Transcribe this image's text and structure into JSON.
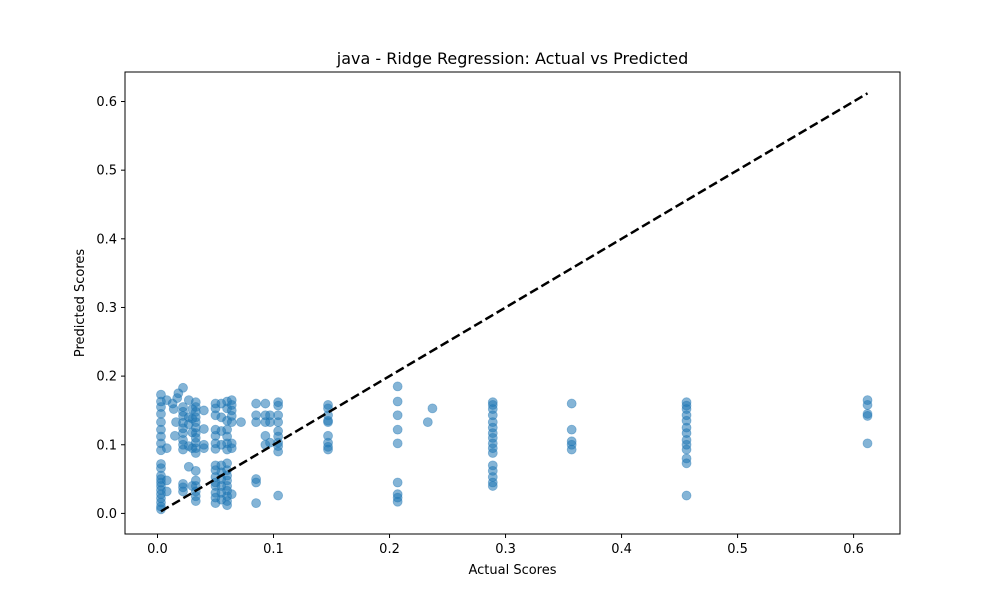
{
  "chart_data": {
    "type": "scatter",
    "title": "java - Ridge Regression: Actual vs Predicted",
    "xlabel": "Actual Scores",
    "ylabel": "Predicted Scores",
    "xlim": [
      -0.028,
      0.64
    ],
    "ylim": [
      -0.03,
      0.643
    ],
    "xticks": [
      0.0,
      0.1,
      0.2,
      0.3,
      0.4,
      0.5,
      0.6
    ],
    "xtick_labels": [
      "0.0",
      "0.1",
      "0.2",
      "0.3",
      "0.4",
      "0.5",
      "0.6"
    ],
    "yticks": [
      0.0,
      0.1,
      0.2,
      0.3,
      0.4,
      0.5,
      0.6
    ],
    "ytick_labels": [
      "0.0",
      "0.1",
      "0.2",
      "0.3",
      "0.4",
      "0.5",
      "0.6"
    ],
    "grid": false,
    "point_color": "#1f77b4",
    "point_alpha": 0.55,
    "reference_line": {
      "style": "dashed",
      "color": "#000000",
      "from": [
        0.003,
        0.003
      ],
      "to": [
        0.612,
        0.612
      ]
    },
    "points": [
      [
        0.003,
        0.173
      ],
      [
        0.003,
        0.163
      ],
      [
        0.003,
        0.155
      ],
      [
        0.003,
        0.145
      ],
      [
        0.003,
        0.133
      ],
      [
        0.003,
        0.122
      ],
      [
        0.003,
        0.112
      ],
      [
        0.003,
        0.102
      ],
      [
        0.003,
        0.092
      ],
      [
        0.003,
        0.072
      ],
      [
        0.003,
        0.066
      ],
      [
        0.003,
        0.055
      ],
      [
        0.003,
        0.05
      ],
      [
        0.003,
        0.045
      ],
      [
        0.003,
        0.04
      ],
      [
        0.003,
        0.034
      ],
      [
        0.003,
        0.028
      ],
      [
        0.003,
        0.022
      ],
      [
        0.003,
        0.016
      ],
      [
        0.003,
        0.01
      ],
      [
        0.003,
        0.006
      ],
      [
        0.008,
        0.165
      ],
      [
        0.008,
        0.095
      ],
      [
        0.008,
        0.048
      ],
      [
        0.008,
        0.032
      ],
      [
        0.013,
        0.16
      ],
      [
        0.014,
        0.152
      ],
      [
        0.015,
        0.113
      ],
      [
        0.016,
        0.133
      ],
      [
        0.017,
        0.168
      ],
      [
        0.018,
        0.175
      ],
      [
        0.022,
        0.183
      ],
      [
        0.022,
        0.155
      ],
      [
        0.022,
        0.148
      ],
      [
        0.022,
        0.142
      ],
      [
        0.022,
        0.132
      ],
      [
        0.022,
        0.124
      ],
      [
        0.022,
        0.117
      ],
      [
        0.022,
        0.107
      ],
      [
        0.022,
        0.1
      ],
      [
        0.022,
        0.093
      ],
      [
        0.022,
        0.043
      ],
      [
        0.022,
        0.038
      ],
      [
        0.022,
        0.032
      ],
      [
        0.027,
        0.165
      ],
      [
        0.027,
        0.14
      ],
      [
        0.027,
        0.13
      ],
      [
        0.027,
        0.098
      ],
      [
        0.027,
        0.068
      ],
      [
        0.03,
        0.152
      ],
      [
        0.03,
        0.138
      ],
      [
        0.03,
        0.118
      ],
      [
        0.03,
        0.095
      ],
      [
        0.03,
        0.04
      ],
      [
        0.033,
        0.162
      ],
      [
        0.033,
        0.155
      ],
      [
        0.033,
        0.148
      ],
      [
        0.033,
        0.14
      ],
      [
        0.033,
        0.133
      ],
      [
        0.033,
        0.125
      ],
      [
        0.033,
        0.117
      ],
      [
        0.033,
        0.11
      ],
      [
        0.033,
        0.103
      ],
      [
        0.033,
        0.095
      ],
      [
        0.033,
        0.088
      ],
      [
        0.033,
        0.062
      ],
      [
        0.033,
        0.048
      ],
      [
        0.033,
        0.04
      ],
      [
        0.033,
        0.032
      ],
      [
        0.033,
        0.025
      ],
      [
        0.033,
        0.018
      ],
      [
        0.04,
        0.15
      ],
      [
        0.04,
        0.123
      ],
      [
        0.04,
        0.1
      ],
      [
        0.04,
        0.095
      ],
      [
        0.05,
        0.16
      ],
      [
        0.05,
        0.153
      ],
      [
        0.05,
        0.143
      ],
      [
        0.05,
        0.122
      ],
      [
        0.05,
        0.113
      ],
      [
        0.05,
        0.102
      ],
      [
        0.05,
        0.094
      ],
      [
        0.05,
        0.07
      ],
      [
        0.05,
        0.063
      ],
      [
        0.05,
        0.053
      ],
      [
        0.05,
        0.045
      ],
      [
        0.05,
        0.04
      ],
      [
        0.05,
        0.03
      ],
      [
        0.05,
        0.023
      ],
      [
        0.05,
        0.015
      ],
      [
        0.055,
        0.16
      ],
      [
        0.055,
        0.14
      ],
      [
        0.055,
        0.12
      ],
      [
        0.055,
        0.1
      ],
      [
        0.055,
        0.07
      ],
      [
        0.055,
        0.06
      ],
      [
        0.055,
        0.05
      ],
      [
        0.055,
        0.04
      ],
      [
        0.055,
        0.03
      ],
      [
        0.055,
        0.02
      ],
      [
        0.06,
        0.163
      ],
      [
        0.06,
        0.153
      ],
      [
        0.06,
        0.135
      ],
      [
        0.06,
        0.122
      ],
      [
        0.06,
        0.112
      ],
      [
        0.06,
        0.102
      ],
      [
        0.06,
        0.093
      ],
      [
        0.06,
        0.073
      ],
      [
        0.06,
        0.063
      ],
      [
        0.06,
        0.055
      ],
      [
        0.06,
        0.048
      ],
      [
        0.06,
        0.04
      ],
      [
        0.06,
        0.033
      ],
      [
        0.06,
        0.025
      ],
      [
        0.06,
        0.018
      ],
      [
        0.06,
        0.012
      ],
      [
        0.064,
        0.165
      ],
      [
        0.064,
        0.158
      ],
      [
        0.064,
        0.15
      ],
      [
        0.064,
        0.142
      ],
      [
        0.064,
        0.133
      ],
      [
        0.064,
        0.102
      ],
      [
        0.064,
        0.095
      ],
      [
        0.064,
        0.028
      ],
      [
        0.072,
        0.133
      ],
      [
        0.085,
        0.16
      ],
      [
        0.085,
        0.143
      ],
      [
        0.085,
        0.133
      ],
      [
        0.085,
        0.05
      ],
      [
        0.085,
        0.045
      ],
      [
        0.085,
        0.015
      ],
      [
        0.093,
        0.16
      ],
      [
        0.093,
        0.143
      ],
      [
        0.093,
        0.133
      ],
      [
        0.093,
        0.113
      ],
      [
        0.093,
        0.1
      ],
      [
        0.097,
        0.143
      ],
      [
        0.097,
        0.133
      ],
      [
        0.097,
        0.103
      ],
      [
        0.104,
        0.162
      ],
      [
        0.104,
        0.157
      ],
      [
        0.104,
        0.143
      ],
      [
        0.104,
        0.133
      ],
      [
        0.104,
        0.12
      ],
      [
        0.104,
        0.112
      ],
      [
        0.104,
        0.103
      ],
      [
        0.104,
        0.098
      ],
      [
        0.104,
        0.09
      ],
      [
        0.104,
        0.026
      ],
      [
        0.147,
        0.158
      ],
      [
        0.147,
        0.153
      ],
      [
        0.147,
        0.143
      ],
      [
        0.147,
        0.135
      ],
      [
        0.147,
        0.133
      ],
      [
        0.147,
        0.113
      ],
      [
        0.147,
        0.103
      ],
      [
        0.147,
        0.097
      ],
      [
        0.147,
        0.093
      ],
      [
        0.207,
        0.185
      ],
      [
        0.207,
        0.163
      ],
      [
        0.207,
        0.143
      ],
      [
        0.207,
        0.122
      ],
      [
        0.207,
        0.102
      ],
      [
        0.207,
        0.045
      ],
      [
        0.207,
        0.028
      ],
      [
        0.207,
        0.023
      ],
      [
        0.207,
        0.017
      ],
      [
        0.233,
        0.133
      ],
      [
        0.237,
        0.153
      ],
      [
        0.289,
        0.162
      ],
      [
        0.289,
        0.158
      ],
      [
        0.289,
        0.152
      ],
      [
        0.289,
        0.143
      ],
      [
        0.289,
        0.133
      ],
      [
        0.289,
        0.125
      ],
      [
        0.289,
        0.117
      ],
      [
        0.289,
        0.11
      ],
      [
        0.289,
        0.102
      ],
      [
        0.289,
        0.095
      ],
      [
        0.289,
        0.088
      ],
      [
        0.289,
        0.07
      ],
      [
        0.289,
        0.062
      ],
      [
        0.289,
        0.053
      ],
      [
        0.289,
        0.045
      ],
      [
        0.289,
        0.04
      ],
      [
        0.357,
        0.16
      ],
      [
        0.357,
        0.122
      ],
      [
        0.357,
        0.105
      ],
      [
        0.357,
        0.1
      ],
      [
        0.357,
        0.093
      ],
      [
        0.456,
        0.162
      ],
      [
        0.456,
        0.157
      ],
      [
        0.456,
        0.152
      ],
      [
        0.456,
        0.143
      ],
      [
        0.456,
        0.135
      ],
      [
        0.456,
        0.125
      ],
      [
        0.456,
        0.117
      ],
      [
        0.456,
        0.107
      ],
      [
        0.456,
        0.1
      ],
      [
        0.456,
        0.093
      ],
      [
        0.456,
        0.08
      ],
      [
        0.456,
        0.073
      ],
      [
        0.456,
        0.026
      ],
      [
        0.612,
        0.165
      ],
      [
        0.612,
        0.158
      ],
      [
        0.612,
        0.145
      ],
      [
        0.612,
        0.142
      ],
      [
        0.612,
        0.102
      ]
    ]
  }
}
